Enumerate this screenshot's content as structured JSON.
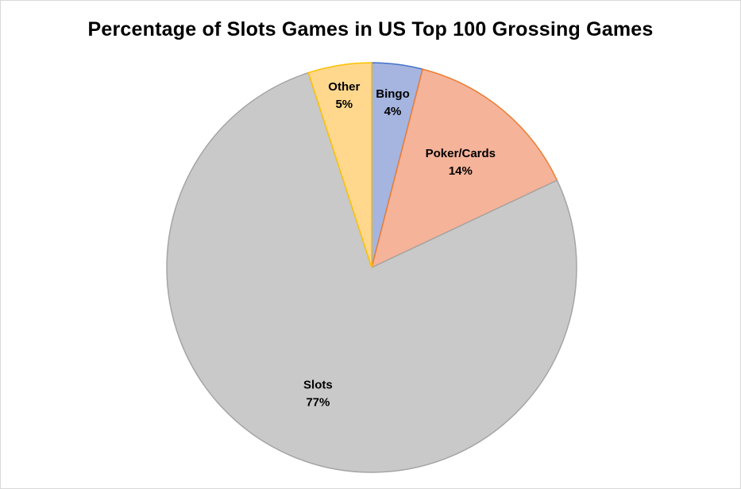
{
  "chart_data": {
    "type": "pie",
    "title": "Percentage of Slots Games in US Top 100 Grossing Games",
    "slices": [
      {
        "name": "Bingo",
        "value": 4,
        "label": "4%",
        "color": "#a5b5e0",
        "stroke": "#4472c4"
      },
      {
        "name": "Poker/Cards",
        "value": 14,
        "label": "14%",
        "color": "#f5b39a",
        "stroke": "#ed7d31"
      },
      {
        "name": "Slots",
        "value": 77,
        "label": "77%",
        "color": "#c9c9c9",
        "stroke": "#a5a5a5"
      },
      {
        "name": "Other",
        "value": 5,
        "label": "5%",
        "color": "#ffd88e",
        "stroke": "#ffc000"
      }
    ],
    "start_angle": "12 o'clock",
    "direction": "clockwise",
    "legend": "none"
  }
}
